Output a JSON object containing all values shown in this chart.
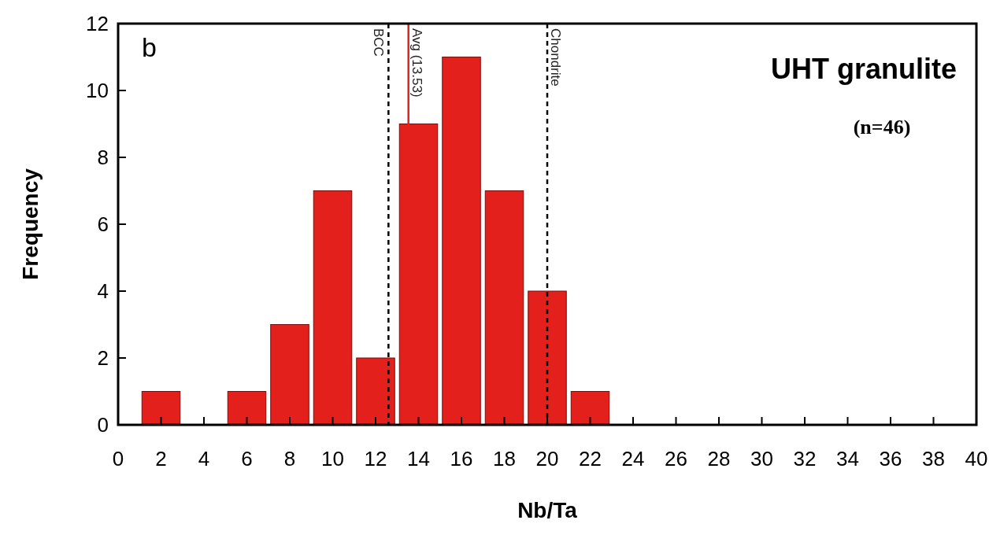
{
  "chart_data": {
    "type": "histogram",
    "title": "UHT granulite",
    "subtitle": "(n=46)",
    "xlabel": "Nb/Ta",
    "ylabel": "Frequency",
    "annotations": [
      "b"
    ],
    "bins": [
      1,
      3,
      5,
      7,
      9,
      11,
      13,
      15,
      17,
      19,
      21,
      23
    ],
    "values": [
      1,
      0,
      1,
      3,
      7,
      2,
      9,
      11,
      7,
      4,
      1
    ],
    "color": "#e3201c",
    "xlim": [
      0,
      40
    ],
    "xticks": [
      0,
      2,
      4,
      6,
      8,
      10,
      12,
      14,
      16,
      18,
      20,
      22,
      24,
      26,
      28,
      30,
      32,
      34,
      36,
      38,
      40
    ],
    "ylim": [
      0,
      12
    ],
    "yticks": [
      0,
      2,
      4,
      6,
      8,
      10,
      12
    ],
    "grid": false,
    "ref_lines": [
      {
        "axis": "x",
        "value": 12.6,
        "label": "BCC",
        "color": "#000000",
        "line_style": "dashed"
      },
      {
        "axis": "x",
        "value": 13.53,
        "label": "Avg (13.53)",
        "color": "#e3201c",
        "line_style": "solid"
      },
      {
        "axis": "x",
        "value": 20,
        "label": "Chondrite",
        "color": "#000000",
        "line_style": "dashed"
      }
    ]
  }
}
